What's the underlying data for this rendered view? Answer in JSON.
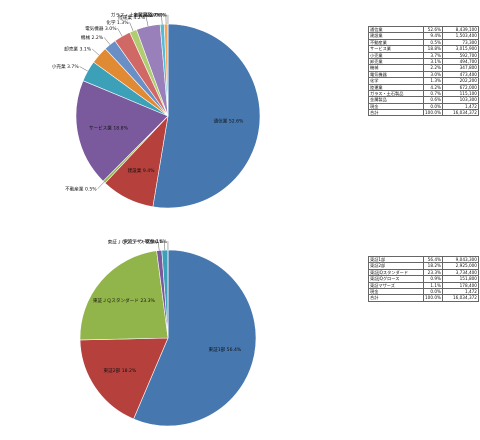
{
  "chart_data": [
    {
      "type": "pie",
      "slices": [
        {
          "label": "通信業",
          "pct_label": "52.6%",
          "value": 8439100,
          "color": "#4677ae"
        },
        {
          "label": "建設業",
          "pct_label": "9.4%",
          "value": 1503400,
          "color": "#b5403c"
        },
        {
          "label": "不動産業",
          "pct_label": "0.5%",
          "value": 73300,
          "color": "#91b54a"
        },
        {
          "label": "サービス業",
          "pct_label": "18.8%",
          "value": 3015900,
          "color": "#7a5a9c"
        },
        {
          "label": "小売業",
          "pct_label": "3.7%",
          "value": 592700,
          "color": "#3ba0b8"
        },
        {
          "label": "卸売業",
          "pct_label": "3.1%",
          "value": 494700,
          "color": "#e08a34"
        },
        {
          "label": "機械",
          "pct_label": "2.2%",
          "value": 347800,
          "color": "#6a8fc6"
        },
        {
          "label": "電気機器",
          "pct_label": "3.0%",
          "value": 473400,
          "color": "#d06966"
        },
        {
          "label": "化学",
          "pct_label": "1.3%",
          "value": 202200,
          "color": "#b0cd72"
        },
        {
          "label": "陸運業",
          "pct_label": "4.2%",
          "value": 672000,
          "color": "#9a80ba"
        },
        {
          "label": "ガラス・土石製品",
          "pct_label": "0.7%",
          "value": 115100,
          "color": "#56bcd2"
        },
        {
          "label": "金属製品",
          "pct_label": "0.6%",
          "value": 103300,
          "color": "#f0a45c"
        },
        {
          "label": "現金",
          "pct_label": "0.0%",
          "value": 1472,
          "color": "#2e5a8c"
        }
      ],
      "total": {
        "label": "合計",
        "pct_label": "100.0%",
        "value_label": "16,034,372"
      }
    },
    {
      "type": "pie",
      "slices": [
        {
          "label": "東証1部",
          "pct_label": "56.4%",
          "value": 9043300,
          "color": "#4677ae"
        },
        {
          "label": "東証2部",
          "pct_label": "18.2%",
          "value": 2925000,
          "color": "#b5403c"
        },
        {
          "label": "東証ＪＱスタンダード",
          "pct_label": "23.3%",
          "value": 3734400,
          "color": "#91b54a"
        },
        {
          "label": "東証ＪＱグロース",
          "pct_label": "0.9%",
          "value": 151800,
          "color": "#7a5a9c"
        },
        {
          "label": "東証マザーズ",
          "pct_label": "1.1%",
          "value": 178400,
          "color": "#3ba0b8"
        },
        {
          "label": "現金",
          "pct_label": "0.0%",
          "value": 1472,
          "color": "#e08a34"
        }
      ],
      "total": {
        "label": "合計",
        "pct_label": "100.0%",
        "value_label": "16,034,372"
      }
    }
  ],
  "tables": [
    {
      "rows": [
        {
          "label": "通信業",
          "pct": "52.6%",
          "value": "8,439,100"
        },
        {
          "label": "建設業",
          "pct": "9.4%",
          "value": "1,503,400"
        },
        {
          "label": "不動産業",
          "pct": "0.5%",
          "value": "73,300"
        },
        {
          "label": "サービス業",
          "pct": "18.8%",
          "value": "3,015,900"
        },
        {
          "label": "小売業",
          "pct": "3.7%",
          "value": "592,700"
        },
        {
          "label": "卸売業",
          "pct": "3.1%",
          "value": "494,700"
        },
        {
          "label": "機械",
          "pct": "2.2%",
          "value": "347,800"
        },
        {
          "label": "電気機器",
          "pct": "3.0%",
          "value": "473,400"
        },
        {
          "label": "化学",
          "pct": "1.3%",
          "value": "202,200"
        },
        {
          "label": "陸運業",
          "pct": "4.2%",
          "value": "672,000"
        },
        {
          "label": "ガラス・土石製品",
          "pct": "0.7%",
          "value": "115,100"
        },
        {
          "label": "金属製品",
          "pct": "0.6%",
          "value": "103,300"
        },
        {
          "label": "現金",
          "pct": "0.0%",
          "value": "1,472"
        }
      ],
      "total": {
        "label": "合計",
        "pct": "100.0%",
        "value": "16,034,372"
      }
    },
    {
      "rows": [
        {
          "label": "東証1部",
          "pct": "56.4%",
          "value": "9,043,300"
        },
        {
          "label": "東証2部",
          "pct": "18.2%",
          "value": "2,925,000"
        },
        {
          "label": "東証JQスタンダード",
          "pct": "23.3%",
          "value": "3,734,400"
        },
        {
          "label": "東証JQグロース",
          "pct": "0.9%",
          "value": "151,800"
        },
        {
          "label": "東証マザーズ",
          "pct": "1.1%",
          "value": "178,400"
        },
        {
          "label": "現金",
          "pct": "0.0%",
          "value": "1,472"
        }
      ],
      "total": {
        "label": "合計",
        "pct": "100.0%",
        "value": "16,034,372"
      }
    }
  ]
}
